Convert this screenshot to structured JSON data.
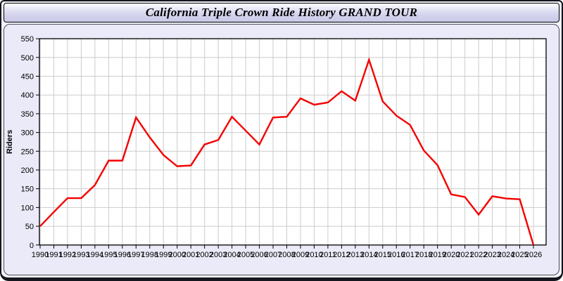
{
  "title": "California Triple Crown Ride History GRAND TOUR",
  "colors": {
    "line": "#f40000",
    "grid": "#cccccc",
    "axis": "#000000",
    "plot_bg": "#ffffff",
    "panel_bg": "#eaeaf8",
    "titlebar_bg": "#d6d6ef",
    "window_border": "#15151d"
  },
  "chart_data": {
    "type": "line",
    "title": "California Triple Crown Ride History GRAND TOUR",
    "xlabel": "",
    "ylabel": "Riders",
    "x": [
      1990,
      1991,
      1992,
      1993,
      1994,
      1995,
      1996,
      1997,
      1998,
      1999,
      2000,
      2001,
      2002,
      2003,
      2004,
      2005,
      2006,
      2007,
      2008,
      2009,
      2010,
      2011,
      2012,
      2013,
      2014,
      2015,
      2016,
      2017,
      2018,
      2019,
      2020,
      2021,
      2022,
      2023,
      2024,
      2025,
      2026
    ],
    "series": [
      {
        "name": "Riders",
        "color": "#f40000",
        "values": [
          50,
          88,
          125,
          125,
          160,
          225,
          225,
          340,
          287,
          240,
          210,
          212,
          268,
          280,
          342,
          305,
          268,
          340,
          342,
          391,
          374,
          380,
          410,
          385,
          494,
          383,
          345,
          320,
          252,
          213,
          135,
          128,
          81,
          130,
          124,
          122,
          0
        ]
      }
    ],
    "ylim": [
      0,
      550
    ],
    "ytick_step": 50,
    "grid": true,
    "legend": false
  }
}
